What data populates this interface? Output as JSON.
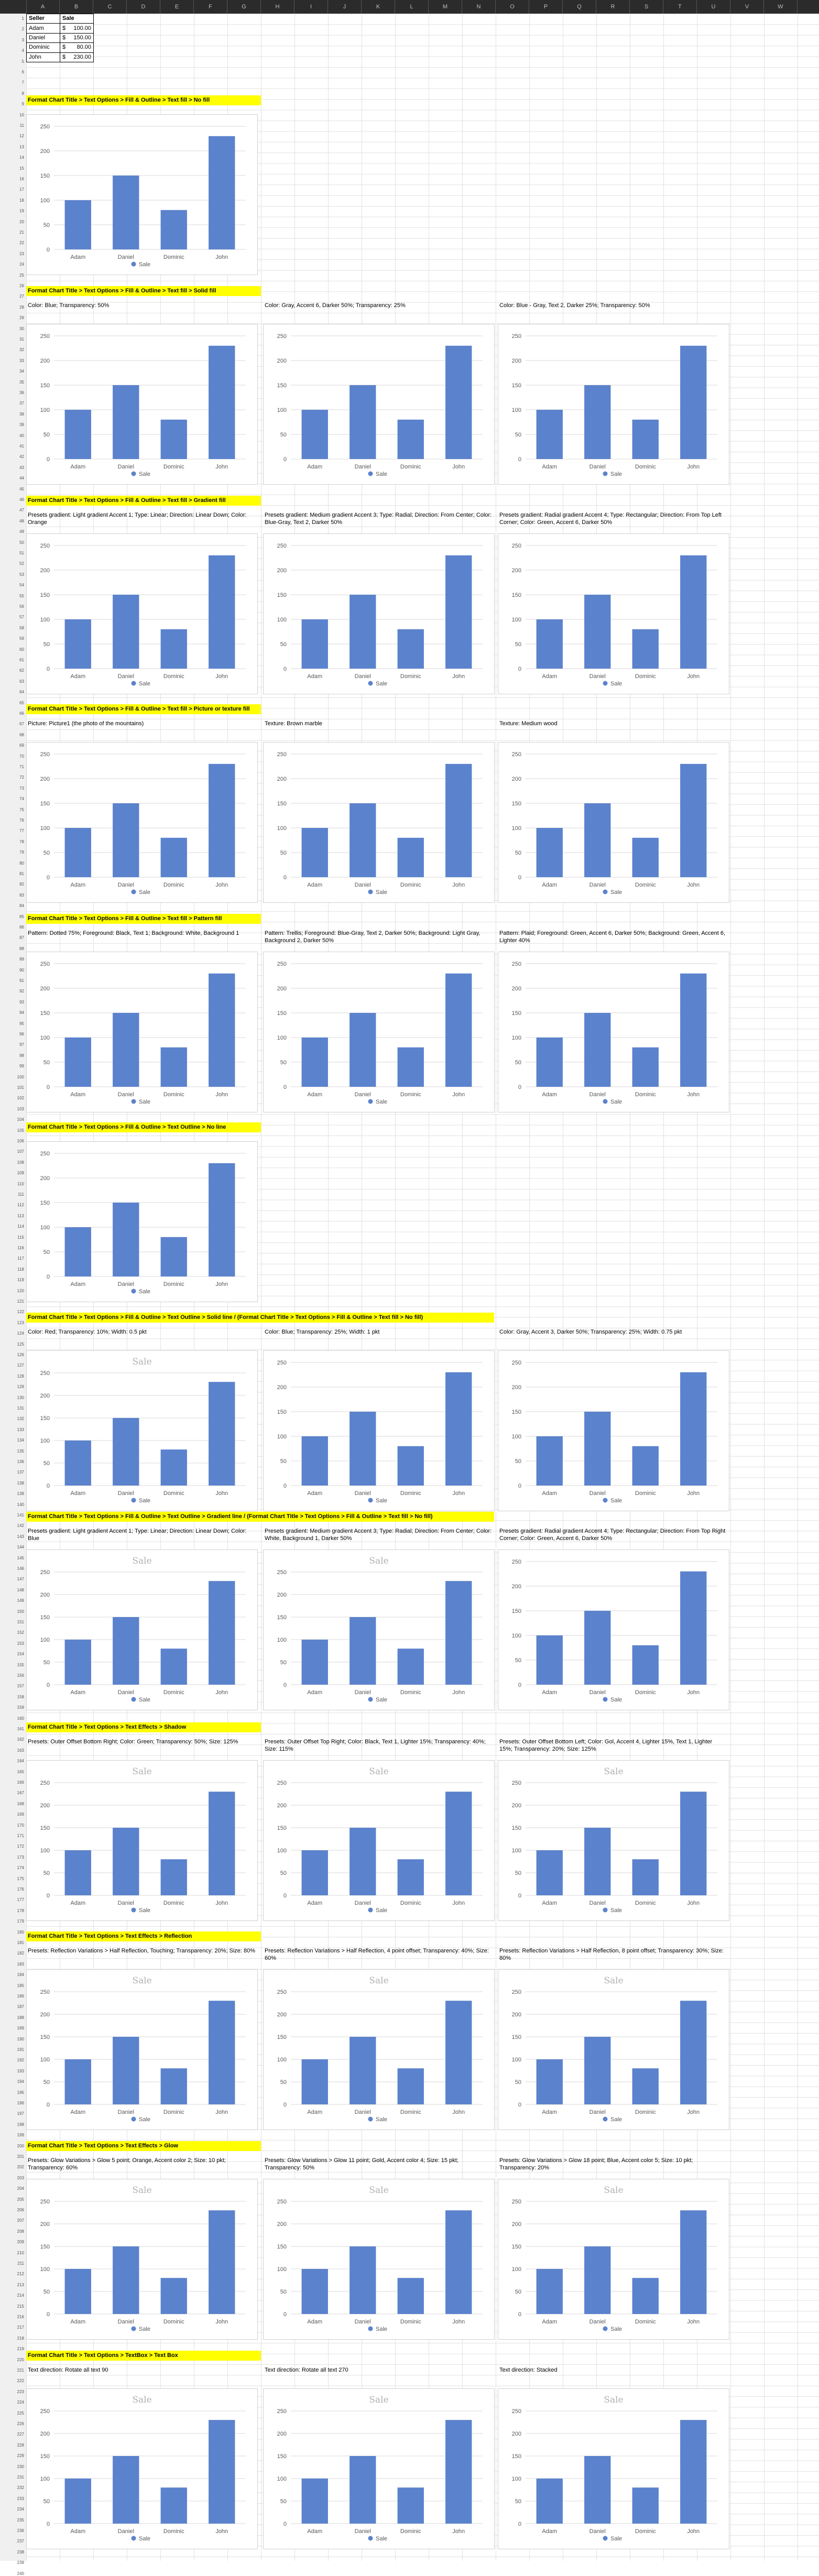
{
  "columns": [
    "A",
    "B",
    "C",
    "D",
    "E",
    "F",
    "G",
    "H",
    "I",
    "J",
    "K",
    "L",
    "M",
    "N",
    "O",
    "P",
    "Q",
    "R",
    "S",
    "T",
    "U",
    "V",
    "W"
  ],
  "row_count": 240,
  "table": {
    "headers": [
      "Seller",
      "Sale"
    ],
    "currency": "$",
    "rows": [
      {
        "seller": "Adam",
        "sale": "100.00"
      },
      {
        "seller": "Daniel",
        "sale": "150.00"
      },
      {
        "seller": "Dominic",
        "sale": "80.00"
      },
      {
        "seller": "John",
        "sale": "230.00"
      }
    ]
  },
  "chart_data": {
    "type": "bar",
    "categories": [
      "Adam",
      "Daniel",
      "Dominic",
      "John"
    ],
    "series": [
      {
        "name": "Sale",
        "values": [
          100,
          150,
          80,
          230
        ]
      }
    ],
    "ylim": [
      0,
      250
    ],
    "yticks": [
      0,
      50,
      100,
      150,
      200,
      250
    ],
    "legend": "bottom",
    "color": "#5b82cc"
  },
  "sections": [
    {
      "title": "Format Chart Title > Text Options > Fill & Outline > Text fill > No fill",
      "charts": [
        {
          "desc": "",
          "title": ""
        }
      ]
    },
    {
      "title": "Format Chart Title > Text Options > Fill & Outline > Text fill > Solid fill",
      "charts": [
        {
          "desc": "Color: Blue; Transparency: 50%",
          "title": ""
        },
        {
          "desc": "Color: Gray, Accent 6, Darker 50%; Transparency: 25%",
          "title": ""
        },
        {
          "desc": "Color: Blue - Gray, Text 2, Darker 25%; Transparency: 50%",
          "title": ""
        }
      ]
    },
    {
      "title": "Format Chart Title > Text Options > Fill & Outline > Text fill > Gradient fill",
      "charts": [
        {
          "desc": "Presets gradient: Light gradient Accent 1; Type: Linear; Direction: Linear Down; Color: Orange",
          "title": ""
        },
        {
          "desc": "Presets gradient: Medium gradient Accent 3; Type: Radial; Direction: From Center; Color: Blue-Gray, Text 2, Darker 50%",
          "title": ""
        },
        {
          "desc": "Presets gradient: Radial gradient Accent 4; Type: Rectangular; Direction: From Top Left Corner; Color: Green, Accent 6, Darker 50%",
          "title": ""
        }
      ]
    },
    {
      "title": "Format Chart Title > Text Options > Fill & Outline > Text fill > Picture or texture fill",
      "charts": [
        {
          "desc": "Picture: Picture1 (the photo of the mountains)",
          "title": ""
        },
        {
          "desc": "Texture: Brown marble",
          "title": ""
        },
        {
          "desc": "Texture: Medium wood",
          "title": ""
        }
      ]
    },
    {
      "title": "Format Chart Title > Text Options > Fill & Outline > Text fill > Pattern fill",
      "charts": [
        {
          "desc": "Pattern: Dotted 75%; Foreground: Black, Text 1; Background: White, Background 1",
          "title": ""
        },
        {
          "desc": "Pattern: Trellis; Foreground: Blue-Gray, Text 2, Darker 50%; Background: Light Gray, Background 2, Darker 50%",
          "title": ""
        },
        {
          "desc": "Pattern: Plaid; Foreground: Green, Accent 6, Darker 50%; Background: Green, Accent 6, Lighter 40%",
          "title": ""
        }
      ]
    },
    {
      "title": "Format Chart Title > Text Options > Fill & Outline > Text Outline > No line",
      "charts": [
        {
          "desc": "",
          "title": ""
        }
      ]
    },
    {
      "title": "Format Chart Title > Text Options > Fill & Outline > Text Outline > Solid line / (Format Chart Title > Text Options > Fill & Outline > Text fill > No fill)",
      "charts": [
        {
          "desc": "Color: Red; Transparency: 10%; Width: 0.5 pkt",
          "title": "Sale"
        },
        {
          "desc": "Color: Blue; Transparency: 25%; Width: 1 pkt",
          "title": ""
        },
        {
          "desc": "Color: Gray, Accent 3, Darker 50%; Transparency: 25%; Width: 0.75 pkt",
          "title": ""
        }
      ]
    },
    {
      "title": "Format Chart Title > Text Options > Fill & Outline > Text Outline > Gradient line / (Format Chart Title > Text Options > Fill & Outline > Text fill > No fill)",
      "charts": [
        {
          "desc": "Presets gradient: Light gradient Accent 1; Type: Linear; Direction: Linear Down; Color: Blue",
          "title": "Sale"
        },
        {
          "desc": "Presets gradient: Medium gradient Accent 3; Type: Radial; Direction: From Center; Color: White, Background 1, Darker 50%",
          "title": "Sale"
        },
        {
          "desc": "Presets gradient: Radial gradient Accent 4; Type: Rectangular; Direction: From Top Right Corner; Color: Green, Accent 6, Darker 50%",
          "title": ""
        }
      ]
    },
    {
      "title": "Format Chart Title > Text Options > Text Effects > Shadow",
      "charts": [
        {
          "desc": "Presets: Outer Offset Bottom Right; Color: Green; Transparency: 50%; Size: 125%",
          "title": "Sale"
        },
        {
          "desc": "Presets: Outer Offset Top Right; Color: Black, Text 1, Lighter 15%; Transparency: 40%; Size: 115%",
          "title": "Sale"
        },
        {
          "desc": "Presets: Outer Offset Bottom Left; Color: Gol, Accent 4, Lighter 15%, Text 1, Lighter 15%; Transparency: 20%; Size: 125%",
          "title": "Sale"
        }
      ]
    },
    {
      "title": "Format Chart Title > Text Options > Text Effects > Reflection",
      "charts": [
        {
          "desc": "Presets: Reflection Variations > Half Reflection, Touching; Transparency: 20%; Size: 80%",
          "title": "Sale"
        },
        {
          "desc": "Presets: Reflection Variations > Half Reflection, 4 point offset; Transparency: 40%; Size: 60%",
          "title": "Sale"
        },
        {
          "desc": "Presets: Reflection Variations > Half Reflection, 8 point offset; Transparency: 30%; Size: 80%",
          "title": "Sale"
        }
      ]
    },
    {
      "title": "Format Chart Title > Text Options > Text Effects > Glow",
      "charts": [
        {
          "desc": "Presets: Glow Variations > Glow 5 point; Orange, Accent color 2; Size: 10 pkt; Transparency: 60%",
          "title": "Sale"
        },
        {
          "desc": "Presets: Glow Variations > Glow 11 point; Gold, Accent color 4; Size: 15 pkt; Transparency: 50%",
          "title": "Sale"
        },
        {
          "desc": "Presets: Glow Variations > Glow 18 point; Blue, Accent color 5; Size: 10 pkt; Transparency: 20%",
          "title": "Sale"
        }
      ]
    },
    {
      "title": "Format Chart Title > Text Options > TextBox > Text Box",
      "charts": [
        {
          "desc": "Text direction: Rotate all text 90",
          "title": "Sale"
        },
        {
          "desc": "Text direction: Rotate all text 270",
          "title": "Sale"
        },
        {
          "desc": "Text direction: Stacked",
          "title": "Sale"
        }
      ]
    }
  ]
}
